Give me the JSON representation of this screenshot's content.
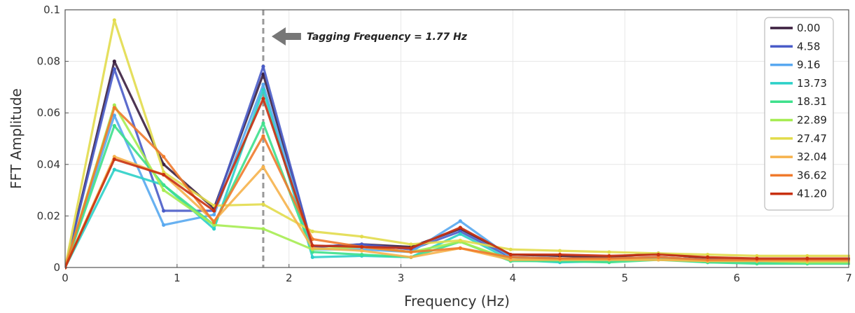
{
  "chart_data": {
    "type": "line",
    "title": "",
    "xlabel": "Frequency (Hz)",
    "ylabel": "FFT Amplitude",
    "xlim": [
      0,
      7
    ],
    "ylim": [
      0,
      0.1
    ],
    "xticks": [
      0,
      1,
      2,
      3,
      4,
      5,
      6,
      7
    ],
    "xtick_labels": [
      "0",
      "1",
      "2",
      "3",
      "4",
      "5",
      "6",
      "7"
    ],
    "yticks": [
      0,
      0.02,
      0.04,
      0.06,
      0.08,
      0.1
    ],
    "ytick_labels": [
      "0",
      "0.02",
      "0.04",
      "0.06",
      "0.08",
      "0.1"
    ],
    "grid": true,
    "legend_position": "top-right",
    "x": [
      0,
      0.44,
      0.88,
      1.33,
      1.77,
      2.21,
      2.65,
      3.09,
      3.53,
      3.98,
      4.42,
      4.86,
      5.3,
      5.74,
      6.18,
      6.63,
      7.07
    ],
    "annotation": {
      "text": "Tagging Frequency = 1.77 Hz",
      "x": 1.77
    },
    "series": [
      {
        "name": "0.00",
        "color": "#3b1f3f",
        "values": [
          0,
          0.08,
          0.04,
          0.023,
          0.075,
          0.008,
          0.009,
          0.008,
          0.015,
          0.005,
          0.0045,
          0.004,
          0.0055,
          0.0035,
          0.003,
          0.003,
          0.003
        ]
      },
      {
        "name": "4.58",
        "color": "#4a5cc8",
        "values": [
          0,
          0.077,
          0.022,
          0.022,
          0.078,
          0.008,
          0.009,
          0.007,
          0.014,
          0.004,
          0.0035,
          0.0035,
          0.004,
          0.003,
          0.003,
          0.003,
          0.003
        ]
      },
      {
        "name": "9.16",
        "color": "#58a8f0",
        "values": [
          0,
          0.059,
          0.0165,
          0.0205,
          0.071,
          0.007,
          0.007,
          0.006,
          0.018,
          0.004,
          0.003,
          0.003,
          0.004,
          0.003,
          0.003,
          0.003,
          0.003
        ]
      },
      {
        "name": "13.73",
        "color": "#2cd0c8",
        "values": [
          0,
          0.038,
          0.032,
          0.015,
          0.069,
          0.004,
          0.0045,
          0.004,
          0.013,
          0.003,
          0.002,
          0.0025,
          0.0035,
          0.002,
          0.002,
          0.002,
          0.002
        ]
      },
      {
        "name": "18.31",
        "color": "#3ee08c",
        "values": [
          0,
          0.055,
          0.032,
          0.0165,
          0.056,
          0.006,
          0.005,
          0.004,
          0.01,
          0.0025,
          0.0025,
          0.002,
          0.003,
          0.002,
          0.0015,
          0.0015,
          0.0015
        ]
      },
      {
        "name": "22.89",
        "color": "#a6ec52",
        "values": [
          0,
          0.063,
          0.03,
          0.0165,
          0.015,
          0.007,
          0.008,
          0.006,
          0.01,
          0.003,
          0.003,
          0.003,
          0.003,
          0.0025,
          0.0025,
          0.002,
          0.002
        ]
      },
      {
        "name": "27.47",
        "color": "#e2dc4c",
        "values": [
          0,
          0.096,
          0.037,
          0.024,
          0.0245,
          0.014,
          0.012,
          0.009,
          0.0105,
          0.007,
          0.0065,
          0.006,
          0.0055,
          0.005,
          0.0045,
          0.0045,
          0.0045
        ]
      },
      {
        "name": "32.04",
        "color": "#f6b24c",
        "values": [
          0,
          0.043,
          0.036,
          0.018,
          0.039,
          0.0075,
          0.0065,
          0.004,
          0.0075,
          0.003,
          0.003,
          0.003,
          0.003,
          0.0025,
          0.0025,
          0.0025,
          0.0025
        ]
      },
      {
        "name": "36.62",
        "color": "#f07a2c",
        "values": [
          0,
          0.062,
          0.043,
          0.0175,
          0.051,
          0.011,
          0.008,
          0.006,
          0.0075,
          0.004,
          0.0035,
          0.0035,
          0.004,
          0.003,
          0.003,
          0.003,
          0.003
        ]
      },
      {
        "name": "41.20",
        "color": "#c83010",
        "values": [
          0,
          0.042,
          0.036,
          0.022,
          0.0655,
          0.0085,
          0.008,
          0.0075,
          0.0155,
          0.005,
          0.005,
          0.0045,
          0.005,
          0.004,
          0.0035,
          0.0035,
          0.0035
        ]
      }
    ]
  }
}
